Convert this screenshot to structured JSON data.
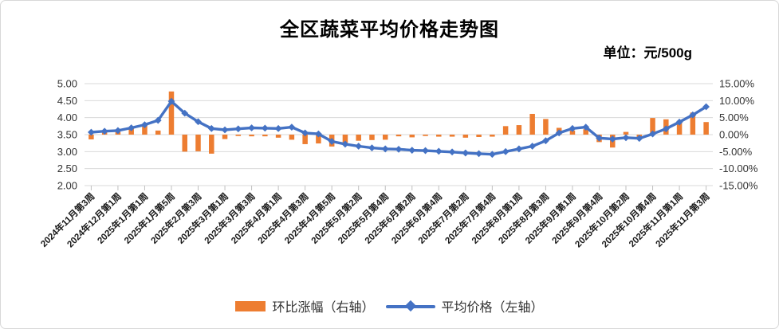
{
  "chart": {
    "title": "全区蔬菜平均价格走势图",
    "unit_label": "单位：元/500g",
    "legend_bar_label": "环比涨幅（右轴）",
    "legend_line_label": "平均价格（左轴）"
  },
  "colors": {
    "bar": "#ED7D31",
    "line": "#4472C4",
    "gridline": "#D9D9D9",
    "axis_text": "#333333",
    "x_label_text": "#1a1a1a",
    "tick_mark": "#BFBFBF"
  },
  "chart_data": {
    "type": "combo",
    "title": "全区蔬菜平均价格走势图",
    "unit": "元/500g",
    "grid": true,
    "legend_position": "bottom",
    "n_points": 47,
    "x_tick_labels": [
      "2024年11月第3周",
      "2024年12月第1周",
      "2025年1月第1周",
      "2025年1月第5周",
      "2025年2月第3周",
      "2025年3月第1周",
      "2025年3月第3周",
      "2025年4月第1周",
      "2025年4月第3周",
      "2025年4月第5周",
      "2025年5月第2周",
      "2025年5月第4周",
      "2025年6月第2周",
      "2025年6月第4周",
      "2025年7月第2周",
      "2025年7月第4周",
      "2025年8月第1周",
      "2025年8月第3周",
      "2025年9月第1周",
      "2025年9月第4周",
      "2025年10月第2周",
      "2025年10月第4周",
      "2025年11月第1周",
      "2025年11月第3周"
    ],
    "x_tick_positions": [
      0,
      2,
      4,
      6,
      8,
      10,
      12,
      14,
      16,
      18,
      20,
      22,
      24,
      26,
      28,
      30,
      32,
      34,
      36,
      38,
      40,
      42,
      44,
      46
    ],
    "left_axis": {
      "label": "平均价格（左轴）",
      "min": 2.0,
      "max": 5.0,
      "step": 0.5,
      "ticks": [
        "5.00",
        "4.50",
        "4.00",
        "3.50",
        "3.00",
        "2.50",
        "2.00"
      ]
    },
    "right_axis": {
      "label": "环比涨幅（右轴）",
      "min": -15,
      "max": 15,
      "step": 5,
      "ticks": [
        "15.00%",
        "10.00%",
        "5.00%",
        "0.00%",
        "-5.00%",
        "-10.00%",
        "-15.00%"
      ]
    },
    "series": [
      {
        "name": "环比涨幅（右轴）",
        "type": "bar",
        "axis": "right",
        "unit": "%",
        "values": [
          -1.4,
          0.9,
          0.8,
          2.0,
          2.9,
          1.2,
          12.7,
          -5.0,
          -4.9,
          -5.6,
          -1.3,
          -0.4,
          -0.5,
          -0.5,
          -0.9,
          -1.5,
          -2.8,
          -2.6,
          -3.5,
          -2.4,
          -1.8,
          -1.6,
          -1.5,
          -0.5,
          -0.8,
          -0.4,
          -0.6,
          -0.6,
          -0.9,
          -0.7,
          -0.6,
          2.5,
          2.8,
          6.1,
          4.6,
          2.0,
          1.2,
          1.6,
          -2.2,
          -3.8,
          0.8,
          -1.0,
          4.9,
          4.5,
          4.1,
          6.5,
          3.7
        ]
      },
      {
        "name": "平均价格（左轴）",
        "type": "line",
        "axis": "left",
        "unit": "元/500g",
        "values": [
          3.57,
          3.6,
          3.62,
          3.7,
          3.79,
          3.92,
          4.48,
          4.13,
          3.88,
          3.68,
          3.64,
          3.67,
          3.7,
          3.69,
          3.68,
          3.72,
          3.55,
          3.52,
          3.3,
          3.22,
          3.16,
          3.11,
          3.08,
          3.07,
          3.04,
          3.03,
          3.01,
          2.99,
          2.96,
          2.94,
          2.92,
          3.0,
          3.08,
          3.16,
          3.32,
          3.55,
          3.68,
          3.72,
          3.4,
          3.37,
          3.41,
          3.39,
          3.52,
          3.67,
          3.87,
          4.08,
          4.32
        ]
      }
    ]
  }
}
